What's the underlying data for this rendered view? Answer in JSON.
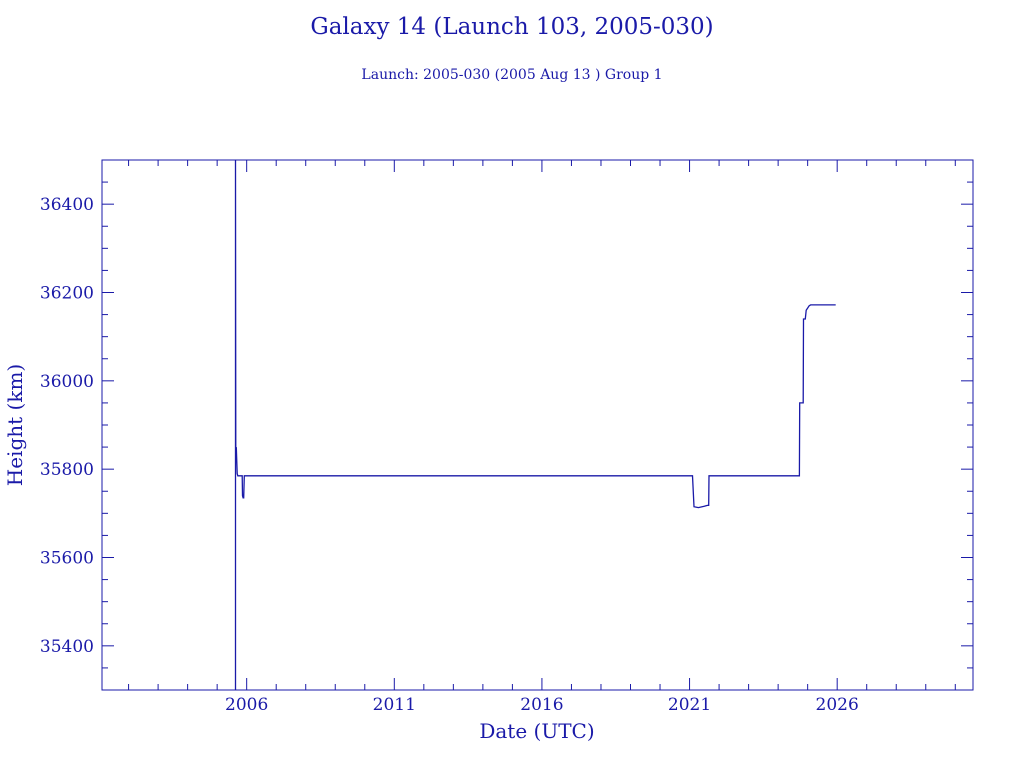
{
  "chart_data": {
    "type": "line",
    "title": "Galaxy 14 (Launch 103, 2005-030)",
    "subtitle": "Launch: 2005-030  (2005 Aug 13 )  Group 1",
    "xlabel": "Date (UTC)",
    "ylabel": "Height (km)",
    "xlim": [
      2001.1,
      2030.6
    ],
    "ylim": [
      35300,
      36500
    ],
    "xticks": [
      2006,
      2011,
      2016,
      2021,
      2026
    ],
    "yticks": [
      35400,
      35600,
      35800,
      36000,
      36200,
      36400
    ],
    "color": "#1a1aa8",
    "series": [
      {
        "x": [
          2005.62,
          2005.62,
          2005.63,
          2005.65,
          2005.68,
          2005.7,
          2005.75,
          2005.78,
          2005.85,
          2005.86,
          2005.88,
          2005.9,
          2005.92,
          2005.93,
          2006.0,
          2008.0,
          2011.0,
          2014.0,
          2016.0,
          2018.0,
          2021.0,
          2021.1,
          2021.15,
          2021.3,
          2021.5,
          2021.6,
          2021.65,
          2021.66,
          2022.0,
          2024.0,
          2024.72,
          2024.73,
          2024.8,
          2024.85,
          2024.86,
          2024.92,
          2024.95,
          2025.0,
          2025.05,
          2025.1,
          2025.3,
          2025.6,
          2025.95
        ],
        "y": [
          35300,
          36500,
          35820,
          35850,
          35790,
          35785,
          35785,
          35785,
          35785,
          35740,
          35735,
          35735,
          35785,
          35785,
          35785,
          35785,
          35785,
          35785,
          35785,
          35785,
          35785,
          35785,
          35715,
          35713,
          35716,
          35718,
          35718,
          35785,
          35785,
          35785,
          35785,
          35950,
          35950,
          35950,
          36140,
          36140,
          36160,
          36165,
          36170,
          36172,
          36172,
          36172,
          36172
        ]
      }
    ]
  }
}
